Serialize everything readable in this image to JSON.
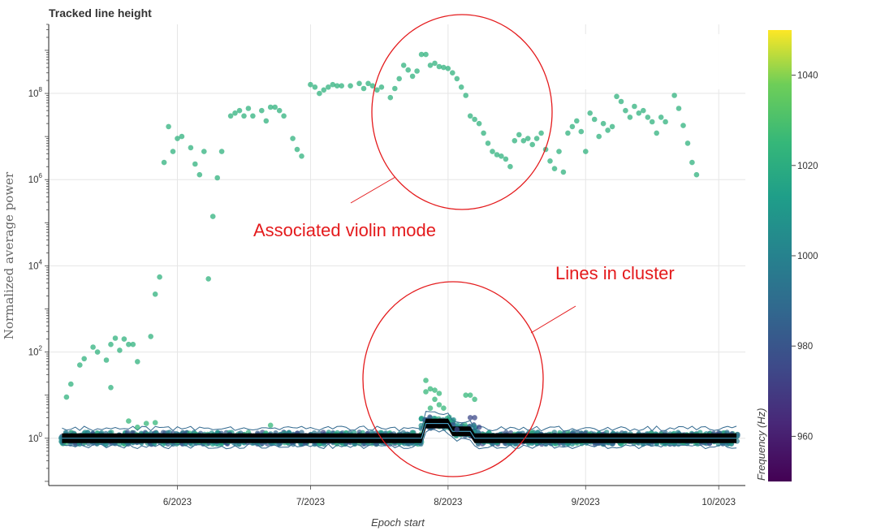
{
  "chart_data": {
    "type": "scatter",
    "title": "Tracked line height",
    "xlabel": "Epoch start",
    "ylabel": "Normalized average power",
    "x_ticks": [
      "6/2023",
      "7/2023",
      "8/2023",
      "9/2023",
      "10/2023"
    ],
    "y_ticks": [
      {
        "base": "10",
        "exp": "0"
      },
      {
        "base": "10",
        "exp": "2"
      },
      {
        "base": "10",
        "exp": "4"
      },
      {
        "base": "10",
        "exp": "6"
      },
      {
        "base": "10",
        "exp": "8"
      }
    ],
    "y_scale": "log",
    "ylim": [
      0.08,
      4000000000.0
    ],
    "xlim": [
      "2023-05-03",
      "2023-10-07"
    ],
    "grid": true,
    "colorbar": {
      "label": "Frequency (Hz)",
      "ticks": [
        "960",
        "980",
        "1000",
        "1020",
        "1040"
      ],
      "range": [
        950,
        1050
      ],
      "colormap": "viridis"
    },
    "annotations": [
      {
        "text": "Associated violin mode"
      },
      {
        "text": "Lines in cluster"
      }
    ],
    "series": [
      {
        "color_freq": 1022,
        "points": [
          [
            "2023-05-07",
            9
          ],
          [
            "2023-05-08",
            18
          ],
          [
            "2023-05-10",
            50
          ],
          [
            "2023-05-11",
            70
          ],
          [
            "2023-05-13",
            130
          ],
          [
            "2023-05-14",
            100
          ],
          [
            "2023-05-16",
            65
          ],
          [
            "2023-05-17",
            15
          ],
          [
            "2023-05-17",
            150
          ],
          [
            "2023-05-18",
            210
          ],
          [
            "2023-05-19",
            110
          ],
          [
            "2023-05-20",
            200
          ],
          [
            "2023-05-21",
            150
          ],
          [
            "2023-05-22",
            150
          ],
          [
            "2023-05-23",
            60
          ],
          [
            "2023-05-26",
            230
          ],
          [
            "2023-05-27",
            2200
          ],
          [
            "2023-05-28",
            5500
          ],
          [
            "2023-05-29",
            2500000
          ],
          [
            "2023-05-30",
            17000000
          ],
          [
            "2023-05-31",
            4500000
          ],
          [
            "2023-06-01",
            9000000
          ],
          [
            "2023-06-02",
            10000000
          ],
          [
            "2023-06-04",
            5500000
          ],
          [
            "2023-06-05",
            2300000
          ],
          [
            "2023-06-06",
            1300000
          ],
          [
            "2023-06-07",
            4500000
          ],
          [
            "2023-06-08",
            5000
          ],
          [
            "2023-06-09",
            140000
          ],
          [
            "2023-06-10",
            1100000
          ],
          [
            "2023-06-11",
            4500000
          ],
          [
            "2023-06-13",
            30000000
          ],
          [
            "2023-06-14",
            35000000
          ],
          [
            "2023-06-15",
            40000000
          ],
          [
            "2023-06-16",
            30000000
          ],
          [
            "2023-06-17",
            45000000
          ],
          [
            "2023-06-18",
            30000000
          ],
          [
            "2023-06-20",
            40000000
          ],
          [
            "2023-06-21",
            23000000
          ],
          [
            "2023-06-22",
            48000000
          ],
          [
            "2023-06-23",
            48000000
          ],
          [
            "2023-06-24",
            40000000
          ],
          [
            "2023-06-25",
            30000000
          ],
          [
            "2023-06-27",
            9000000
          ],
          [
            "2023-06-28",
            5000000
          ],
          [
            "2023-06-29",
            3500000
          ],
          [
            "2023-07-01",
            160000000
          ],
          [
            "2023-07-02",
            140000000
          ],
          [
            "2023-07-03",
            100000000
          ],
          [
            "2023-07-04",
            120000000
          ],
          [
            "2023-07-05",
            140000000
          ],
          [
            "2023-07-06",
            160000000
          ],
          [
            "2023-07-07",
            150000000
          ],
          [
            "2023-07-08",
            150000000
          ],
          [
            "2023-07-10",
            150000000
          ],
          [
            "2023-07-12",
            170000000
          ],
          [
            "2023-07-13",
            130000000
          ],
          [
            "2023-07-14",
            170000000
          ],
          [
            "2023-07-15",
            150000000
          ],
          [
            "2023-07-16",
            120000000
          ],
          [
            "2023-07-17",
            140000000
          ],
          [
            "2023-07-19",
            80000000
          ],
          [
            "2023-07-20",
            130000000
          ],
          [
            "2023-07-21",
            220000000
          ],
          [
            "2023-07-22",
            450000000
          ],
          [
            "2023-07-23",
            350000000
          ],
          [
            "2023-07-24",
            250000000
          ],
          [
            "2023-07-25",
            330000000
          ],
          [
            "2023-07-26",
            800000000
          ],
          [
            "2023-07-27",
            800000000
          ],
          [
            "2023-07-28",
            450000000
          ],
          [
            "2023-07-29",
            500000000
          ],
          [
            "2023-07-30",
            420000000
          ],
          [
            "2023-07-31",
            400000000
          ],
          [
            "2023-08-01",
            380000000
          ],
          [
            "2023-08-02",
            300000000
          ],
          [
            "2023-08-03",
            220000000
          ],
          [
            "2023-08-04",
            140000000
          ],
          [
            "2023-08-05",
            90000000
          ],
          [
            "2023-08-06",
            30000000
          ],
          [
            "2023-08-07",
            25000000
          ],
          [
            "2023-08-08",
            20000000
          ],
          [
            "2023-08-09",
            12000000
          ],
          [
            "2023-08-10",
            7000000
          ],
          [
            "2023-08-11",
            4500000
          ],
          [
            "2023-08-12",
            3800000
          ],
          [
            "2023-08-13",
            3500000
          ],
          [
            "2023-08-14",
            3000000
          ],
          [
            "2023-08-15",
            2000000
          ],
          [
            "2023-08-16",
            8000000
          ],
          [
            "2023-08-17",
            11000000
          ],
          [
            "2023-08-18",
            8000000
          ],
          [
            "2023-08-19",
            9000000
          ],
          [
            "2023-08-20",
            6500000
          ],
          [
            "2023-08-21",
            9000000
          ],
          [
            "2023-08-22",
            12000000
          ],
          [
            "2023-08-23",
            5000000
          ],
          [
            "2023-08-24",
            2700000
          ],
          [
            "2023-08-25",
            1800000
          ],
          [
            "2023-08-26",
            4500000
          ],
          [
            "2023-08-27",
            1500000
          ],
          [
            "2023-08-28",
            12000000
          ],
          [
            "2023-08-29",
            17000000
          ],
          [
            "2023-08-30",
            23000000
          ],
          [
            "2023-08-31",
            13000000
          ],
          [
            "2023-09-01",
            4500000
          ],
          [
            "2023-09-02",
            35000000
          ],
          [
            "2023-09-03",
            25000000
          ],
          [
            "2023-09-04",
            10000000
          ],
          [
            "2023-09-05",
            20000000
          ],
          [
            "2023-09-06",
            14000000
          ],
          [
            "2023-09-07",
            17000000
          ],
          [
            "2023-09-08",
            85000000
          ],
          [
            "2023-09-09",
            65000000
          ],
          [
            "2023-09-10",
            40000000
          ],
          [
            "2023-09-11",
            28000000
          ],
          [
            "2023-09-12",
            50000000
          ],
          [
            "2023-09-13",
            35000000
          ],
          [
            "2023-09-14",
            40000000
          ],
          [
            "2023-09-15",
            28000000
          ],
          [
            "2023-09-16",
            22000000
          ],
          [
            "2023-09-17",
            12000000
          ],
          [
            "2023-09-18",
            28000000
          ],
          [
            "2023-09-19",
            22000000
          ],
          [
            "2023-09-21",
            90000000
          ],
          [
            "2023-09-22",
            45000000
          ],
          [
            "2023-09-23",
            18000000
          ],
          [
            "2023-09-24",
            7000000
          ],
          [
            "2023-09-25",
            2500000
          ],
          [
            "2023-09-26",
            1300000
          ]
        ]
      },
      {
        "color_freq": 1025,
        "points": [
          [
            "2023-07-27",
            22
          ],
          [
            "2023-07-27",
            12
          ],
          [
            "2023-07-28",
            14
          ],
          [
            "2023-07-29",
            13
          ],
          [
            "2023-07-29",
            8
          ],
          [
            "2023-07-30",
            11
          ],
          [
            "2023-07-30",
            6
          ],
          [
            "2023-07-31",
            5
          ],
          [
            "2023-07-28",
            5
          ],
          [
            "2023-08-05",
            10
          ],
          [
            "2023-08-06",
            10
          ],
          [
            "2023-08-07",
            8
          ],
          [
            "2023-05-21",
            2.5
          ],
          [
            "2023-05-23",
            1.8
          ],
          [
            "2023-05-25",
            2.2
          ],
          [
            "2023-05-27",
            2.3
          ],
          [
            "2023-06-22",
            2.0
          ]
        ]
      },
      {
        "color_freq": 975,
        "points": [
          [
            "2023-08-06",
            3.0
          ],
          [
            "2023-08-07",
            3.0
          ],
          [
            "2023-08-08",
            1.8
          ],
          [
            "2023-08-03",
            1.6
          ]
        ]
      }
    ]
  }
}
